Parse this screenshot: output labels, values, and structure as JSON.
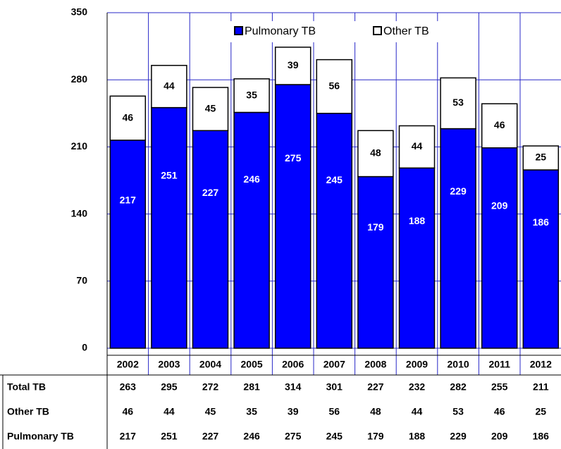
{
  "chart_data": {
    "type": "stacked_bar",
    "categories": [
      "2002",
      "2003",
      "2004",
      "2005",
      "2006",
      "2007",
      "2008",
      "2009",
      "2010",
      "2011",
      "2012"
    ],
    "series": [
      {
        "name": "Pulmonary TB",
        "color": "#0000ff",
        "values": [
          217,
          251,
          227,
          246,
          275,
          245,
          179,
          188,
          229,
          209,
          186
        ]
      },
      {
        "name": "Other TB",
        "color": "#ffffff",
        "values": [
          46,
          44,
          45,
          35,
          39,
          56,
          48,
          44,
          53,
          46,
          25
        ]
      }
    ],
    "totals": {
      "label": "Total TB",
      "values": [
        263,
        295,
        272,
        281,
        314,
        301,
        227,
        232,
        282,
        255,
        211
      ]
    },
    "ylim": [
      0,
      350
    ],
    "yticks": [
      0,
      70,
      140,
      210,
      280,
      350
    ],
    "grid": true,
    "legend": "top"
  }
}
